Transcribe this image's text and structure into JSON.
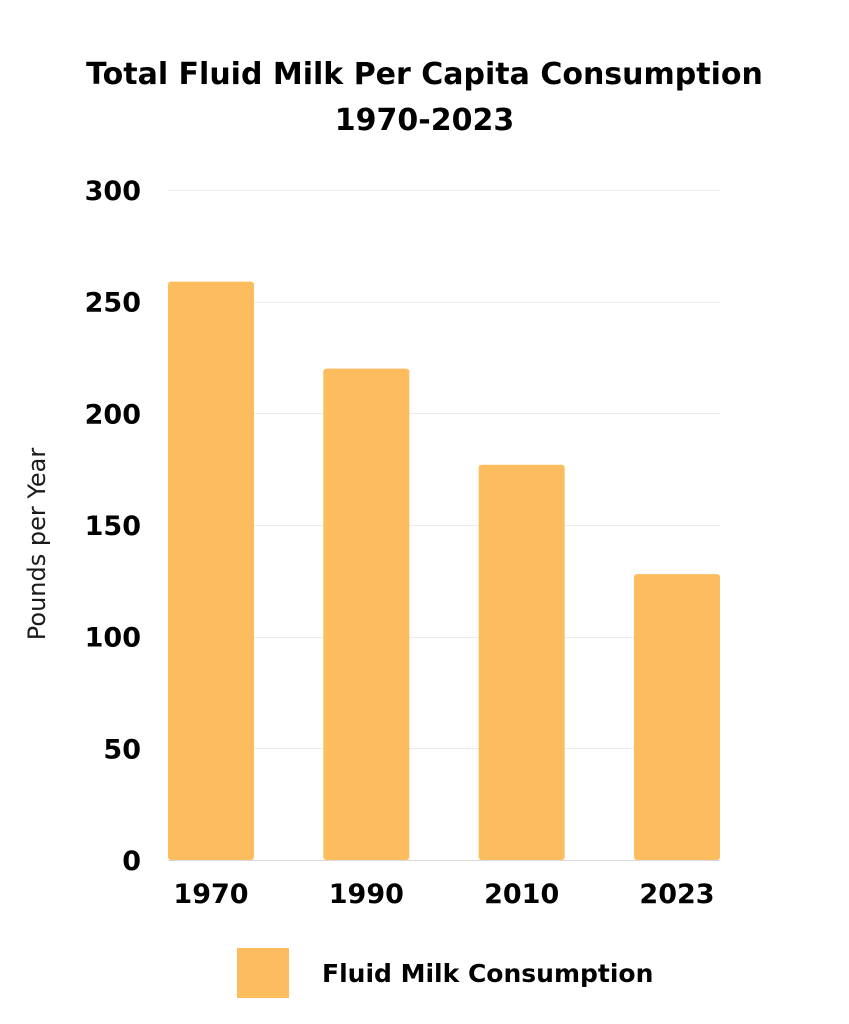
{
  "chart_data": {
    "type": "bar",
    "title_lines": [
      "Total Fluid Milk Per Capita Consumption",
      "1970-2023"
    ],
    "xlabel": "",
    "ylabel": "Pounds per Year",
    "categories": [
      "1970",
      "1990",
      "2010",
      "2023"
    ],
    "series": [
      {
        "name": "Fluid Milk Consumption",
        "values": [
          259,
          220,
          177,
          128
        ],
        "color": "#FDBC5E"
      }
    ],
    "ylim": [
      0,
      300
    ],
    "yticks": [
      0,
      50,
      100,
      150,
      200,
      250,
      300
    ],
    "grid": true,
    "legend": "bottom-center"
  }
}
